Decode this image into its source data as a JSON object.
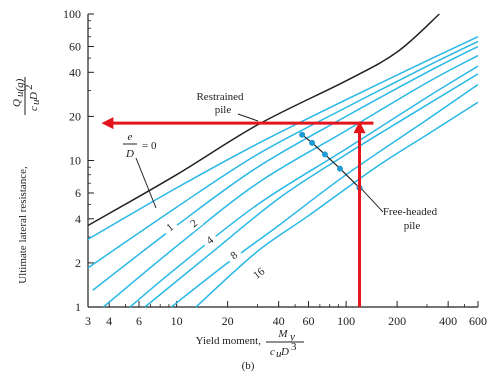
{
  "chart_data": {
    "type": "line",
    "xscale": "log",
    "yscale": "log",
    "xlim": [
      3,
      600
    ],
    "ylim": [
      1,
      100
    ],
    "x_ticks": [
      3,
      4,
      6,
      10,
      20,
      40,
      60,
      100,
      200,
      400,
      600
    ],
    "y_ticks": [
      1,
      2,
      4,
      6,
      10,
      20,
      40,
      60,
      100
    ],
    "xlabel": {
      "prefix": "Yield moment,",
      "numerator": "M",
      "numerator_sub": "y",
      "denominator": "c",
      "denominator_sub": "u",
      "denominator_rest": "D",
      "denominator_exp": "3"
    },
    "ylabel": {
      "prefix": "Ultimate lateral resistance,",
      "numerator": "Q",
      "numerator_sub": "u(g)",
      "denominator": "c",
      "denominator_sub": "u",
      "denominator_rest": "D",
      "denominator_exp": "2"
    },
    "caption": "(b)",
    "colors": {
      "restrained": "#222222",
      "free_headed": "#29b8e6",
      "arrow": "#e3141b",
      "marker": "#1e9ad6"
    },
    "restrained_curve": {
      "label_line1": "Restrained",
      "label_line2": "pile",
      "points": [
        [
          3,
          3.6
        ],
        [
          10,
          8
        ],
        [
          30,
          17.5
        ],
        [
          100,
          35
        ],
        [
          200,
          55
        ],
        [
          355,
          100
        ]
      ]
    },
    "free_headed_label": {
      "line1": "Free-headed",
      "line2": "pile"
    },
    "series": [
      {
        "name": "e/D = 0",
        "points": [
          [
            3,
            2.9
          ],
          [
            10,
            6.5
          ],
          [
            30,
            13
          ],
          [
            100,
            26
          ],
          [
            300,
            48
          ],
          [
            600,
            70
          ]
        ]
      },
      {
        "name": "1",
        "points": [
          [
            3,
            1.85
          ],
          [
            10,
            4.8
          ],
          [
            30,
            11
          ],
          [
            100,
            23
          ],
          [
            300,
            44
          ],
          [
            600,
            65
          ]
        ]
      },
      {
        "name": "2",
        "points": [
          [
            3.2,
            1.3
          ],
          [
            10,
            3.6
          ],
          [
            30,
            9
          ],
          [
            100,
            20
          ],
          [
            300,
            40
          ],
          [
            600,
            60
          ]
        ]
      },
      {
        "name": "4",
        "points": [
          [
            3.7,
            1.0
          ],
          [
            10,
            2.6
          ],
          [
            30,
            7
          ],
          [
            100,
            16
          ],
          [
            300,
            34
          ],
          [
            600,
            52
          ]
        ]
      },
      {
        "name": "8",
        "points": [
          [
            5.3,
            1.0
          ],
          [
            10,
            1.85
          ],
          [
            30,
            5
          ],
          [
            100,
            12
          ],
          [
            300,
            27
          ],
          [
            600,
            44
          ]
        ]
      },
      {
        "name": "16",
        "points": [
          [
            9.3,
            1.0
          ],
          [
            20,
            2
          ],
          [
            40,
            3.6
          ],
          [
            100,
            8
          ],
          [
            300,
            19
          ],
          [
            600,
            33
          ]
        ]
      },
      {
        "name": "",
        "points": [
          [
            6.5,
            1.0
          ],
          [
            15,
            2.2
          ],
          [
            40,
            5.5
          ],
          [
            100,
            11
          ],
          [
            300,
            24
          ],
          [
            600,
            39
          ]
        ]
      },
      {
        "name": "",
        "points": [
          [
            13,
            1.0
          ],
          [
            30,
            2.4
          ],
          [
            60,
            4.2
          ],
          [
            150,
            9
          ],
          [
            300,
            15
          ],
          [
            600,
            25
          ]
        ]
      }
    ],
    "free_headed_points": [
      [
        55,
        15
      ],
      [
        63,
        13.2
      ],
      [
        75,
        11
      ],
      [
        92,
        8.8
      ],
      [
        120,
        6.5
      ]
    ],
    "curve_labels": [
      {
        "text": "e",
        "sub": "D",
        "suffix": "= 0"
      },
      {
        "text": "1"
      },
      {
        "text": "2"
      },
      {
        "text": "4"
      },
      {
        "text": "8"
      },
      {
        "text": "16"
      }
    ],
    "arrows": {
      "vertical_x": 120,
      "horizontal_y": 18,
      "vertical_from_y": 1,
      "horizontal_from_x": 145,
      "horizontal_to_x": 3.6
    }
  }
}
